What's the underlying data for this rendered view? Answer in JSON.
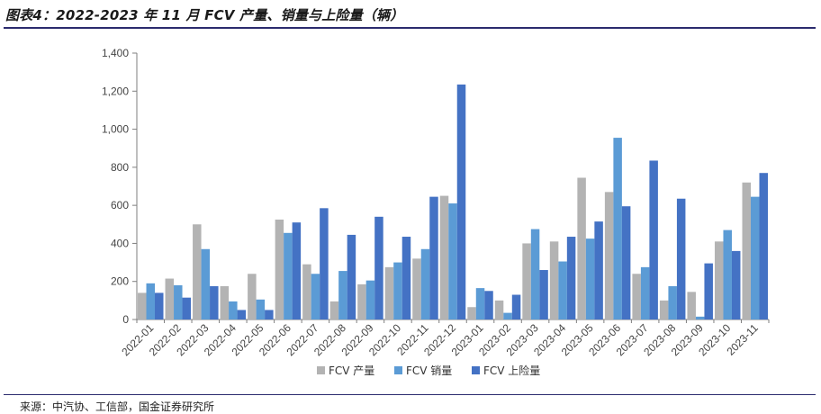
{
  "title": "图表4：2022-2023 年 11 月 FCV 产量、销量与上险量（辆）",
  "source": "来源：中汽协、工信部，国金证券研究所",
  "chart_data": {
    "type": "bar",
    "categories": [
      "2022-01",
      "2022-02",
      "2022-03",
      "2022-04",
      "2022-05",
      "2022-06",
      "2022-07",
      "2022-08",
      "2022-09",
      "2022-10",
      "2022-11",
      "2022-12",
      "2023-01",
      "2023-02",
      "2023-03",
      "2023-04",
      "2023-05",
      "2023-06",
      "2023-07",
      "2023-08",
      "2023-09",
      "2023-10",
      "2023-11"
    ],
    "series": [
      {
        "name": "FCV 产量",
        "color": "#b3b3b3",
        "values": [
          140,
          215,
          500,
          175,
          240,
          525,
          290,
          95,
          185,
          275,
          320,
          650,
          65,
          100,
          400,
          410,
          745,
          670,
          240,
          100,
          145,
          410,
          720
        ]
      },
      {
        "name": "FCV 销量",
        "color": "#5b9bd5",
        "values": [
          190,
          180,
          370,
          95,
          105,
          455,
          240,
          255,
          205,
          300,
          370,
          610,
          165,
          35,
          475,
          305,
          425,
          955,
          275,
          175,
          15,
          470,
          645
        ]
      },
      {
        "name": "FCV 上险量",
        "color": "#4472c4",
        "values": [
          140,
          115,
          175,
          50,
          50,
          510,
          585,
          445,
          540,
          435,
          645,
          1235,
          150,
          130,
          260,
          435,
          515,
          595,
          835,
          635,
          295,
          360,
          770
        ]
      }
    ],
    "yticks": [
      "0",
      "200",
      "400",
      "600",
      "800",
      "1,000",
      "1,200",
      "1,400"
    ],
    "ylim": [
      0,
      1400
    ],
    "grid": false,
    "legend": "bottom-center"
  }
}
